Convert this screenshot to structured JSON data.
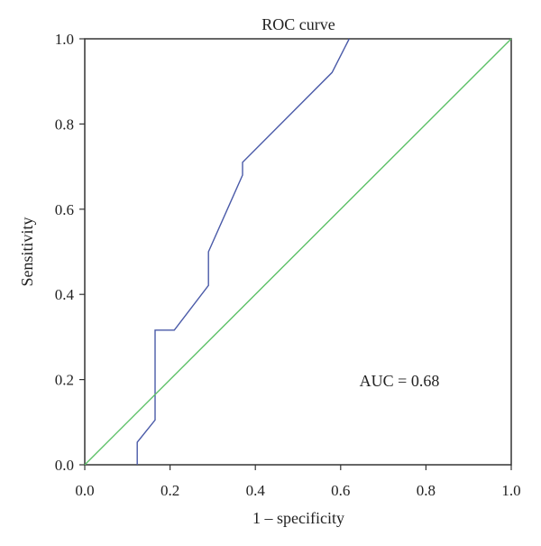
{
  "chart_data": {
    "type": "line",
    "title": "ROC curve",
    "xlabel": "1 – specificity",
    "ylabel": "Sensitivity",
    "xlim": [
      0.0,
      1.0
    ],
    "ylim": [
      0.0,
      1.0
    ],
    "xticks": [
      "0.0",
      "0.2",
      "0.4",
      "0.6",
      "0.8",
      "1.0"
    ],
    "yticks": [
      "0.0",
      "0.2",
      "0.4",
      "0.6",
      "0.8",
      "1.0"
    ],
    "grid": false,
    "legend": "none",
    "annotation": "AUC = 0.68",
    "series": [
      {
        "color": "#4a5aa8",
        "x": [
          0.123,
          0.123,
          0.165,
          0.165,
          0.21,
          0.29,
          0.29,
          0.37,
          0.37,
          0.58,
          0.62
        ],
        "y": [
          0.0,
          0.053,
          0.105,
          0.316,
          0.316,
          0.421,
          0.5,
          0.68,
          0.71,
          0.921,
          1.0
        ]
      },
      {
        "color": "#5cc067",
        "x": [
          0.0,
          1.0
        ],
        "y": [
          0.0,
          1.0
        ]
      }
    ]
  }
}
